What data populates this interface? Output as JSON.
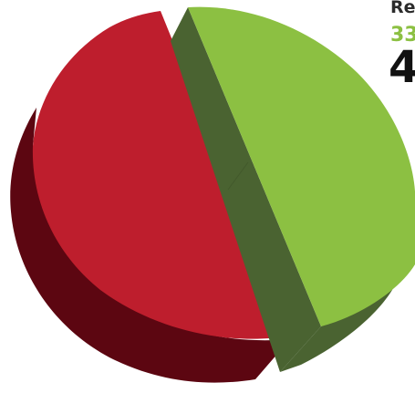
{
  "chart_data": {
    "type": "pie",
    "style": "3d-exploded",
    "slices": [
      {
        "name": "",
        "value": 52,
        "color": "#be1e2d",
        "side_color": "#5c0611"
      },
      {
        "name": "",
        "value": 48,
        "color": "#8cc042",
        "side_color": "#4a6331"
      }
    ],
    "labels": {
      "title": "Re",
      "value": "33",
      "big": "4"
    },
    "label_colors": {
      "value": "#8cc042"
    }
  }
}
